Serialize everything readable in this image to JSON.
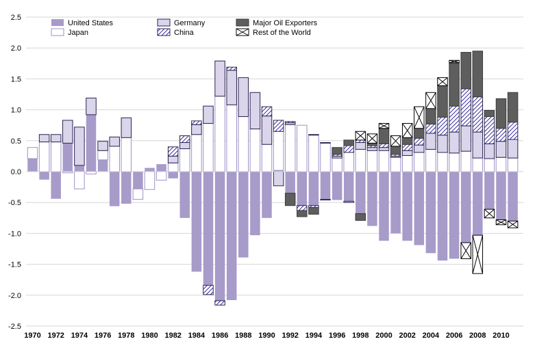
{
  "chart_data": {
    "type": "bar",
    "stacked": true,
    "title": "",
    "xlabel": "",
    "ylabel": "",
    "ylim": [
      -2.5,
      2.5
    ],
    "yticks": [
      "2.5",
      "2.0",
      "1.5",
      "1.0",
      "0.5",
      "0.0",
      "-0.5",
      "-1.0",
      "-1.5",
      "-2.0",
      "-2.5"
    ],
    "ytick_values": [
      2.5,
      2.0,
      1.5,
      1.0,
      0.5,
      0.0,
      -0.5,
      -1.0,
      -1.5,
      -2.0,
      -2.5
    ],
    "grid": true,
    "legend_position": "top-left",
    "categories": [
      1970,
      1971,
      1972,
      1973,
      1974,
      1975,
      1976,
      1977,
      1978,
      1979,
      1980,
      1981,
      1982,
      1983,
      1984,
      1985,
      1986,
      1987,
      1988,
      1989,
      1990,
      1991,
      1992,
      1993,
      1994,
      1995,
      1996,
      1997,
      1998,
      1999,
      2000,
      2001,
      2002,
      2003,
      2004,
      2005,
      2006,
      2007,
      2008,
      2009,
      2010,
      2011
    ],
    "xtick_labels": [
      "1970",
      "1972",
      "1974",
      "1976",
      "1978",
      "1980",
      "1982",
      "1984",
      "1986",
      "1988",
      "1990",
      "1992",
      "1994",
      "1996",
      "1998",
      "2000",
      "2002",
      "2004",
      "2006",
      "2008",
      "2010"
    ],
    "series": [
      {
        "name": "United States",
        "style": "solid-purple",
        "values": [
          0.21,
          -0.13,
          -0.44,
          0.46,
          0.1,
          0.92,
          0.19,
          -0.56,
          -0.52,
          -0.28,
          0.06,
          0.12,
          -0.11,
          -0.75,
          -1.62,
          -1.84,
          -2.09,
          -2.08,
          -1.39,
          -1.03,
          -0.75,
          0.02,
          -0.35,
          -0.55,
          -0.55,
          -0.45,
          -0.46,
          -0.48,
          -0.68,
          -0.88,
          -1.12,
          -1.0,
          -1.12,
          -1.19,
          -1.32,
          -1.44,
          -1.41,
          -1.15,
          -1.03,
          -0.61,
          -0.78,
          -0.8
        ]
      },
      {
        "name": "Japan",
        "style": "white-outline",
        "values": [
          0.18,
          0.48,
          0.48,
          -0.02,
          -0.28,
          -0.04,
          0.15,
          0.41,
          0.55,
          -0.17,
          -0.29,
          -0.14,
          0.14,
          0.37,
          0.6,
          0.78,
          1.22,
          1.08,
          0.89,
          0.69,
          0.44,
          0.63,
          0.76,
          0.75,
          0.59,
          0.46,
          0.22,
          0.31,
          0.36,
          0.34,
          0.34,
          0.23,
          0.26,
          0.31,
          0.36,
          0.31,
          0.3,
          0.33,
          0.22,
          0.21,
          0.23,
          0.22
        ]
      },
      {
        "name": "Germany",
        "style": "light-lavender",
        "values": [
          0,
          0.12,
          0.12,
          0.37,
          0.62,
          0.27,
          0.15,
          0.15,
          0.32,
          0,
          0,
          0,
          0.11,
          0.1,
          0.16,
          0.28,
          0.57,
          0.56,
          0.63,
          0.59,
          0.46,
          -0.23,
          0.03,
          0,
          0.01,
          0.01,
          0.03,
          -0.02,
          0.11,
          0.05,
          0.05,
          0.02,
          0.08,
          0.12,
          0.26,
          0.28,
          0.34,
          0.41,
          0.42,
          0.24,
          0.26,
          0.3
        ]
      },
      {
        "name": "China",
        "style": "hatched-diagonal",
        "values": [
          0,
          0,
          0,
          0,
          0,
          0,
          0,
          0,
          0,
          0,
          0,
          0,
          0.15,
          0.11,
          0.06,
          -0.15,
          -0.07,
          0.05,
          0,
          0,
          0.15,
          0.18,
          0.02,
          -0.08,
          -0.03,
          -0.01,
          0.03,
          0.11,
          0.04,
          0.03,
          0.06,
          0.03,
          0.1,
          0.11,
          0.15,
          0.29,
          0.42,
          0.6,
          0.57,
          0.44,
          0.21,
          0.28
        ]
      },
      {
        "name": "Major Oil Exporters",
        "style": "dark-gray",
        "values": [
          0,
          0,
          0,
          0,
          0,
          0,
          0,
          0,
          0,
          0,
          0,
          0,
          0,
          0,
          0,
          0,
          0,
          0,
          0,
          0,
          0,
          0,
          -0.2,
          -0.1,
          -0.11,
          0,
          0.11,
          0.09,
          -0.11,
          0.04,
          0.25,
          0.13,
          0.11,
          0.16,
          0.25,
          0.51,
          0.7,
          0.59,
          0.74,
          0.1,
          0.48,
          0.48
        ]
      },
      {
        "name": "Rest of the World",
        "style": "cross-hatched",
        "values": [
          0,
          0,
          0,
          0,
          0,
          0,
          0,
          0,
          0,
          0,
          0,
          0,
          0,
          0,
          0,
          0,
          0,
          0,
          0,
          0,
          0,
          0,
          0,
          0,
          0,
          0,
          0,
          0,
          0.14,
          0.15,
          0.08,
          0.17,
          0.23,
          0.35,
          0.26,
          0.13,
          0.04,
          -0.26,
          -0.62,
          -0.14,
          -0.08,
          -0.11
        ]
      }
    ]
  }
}
